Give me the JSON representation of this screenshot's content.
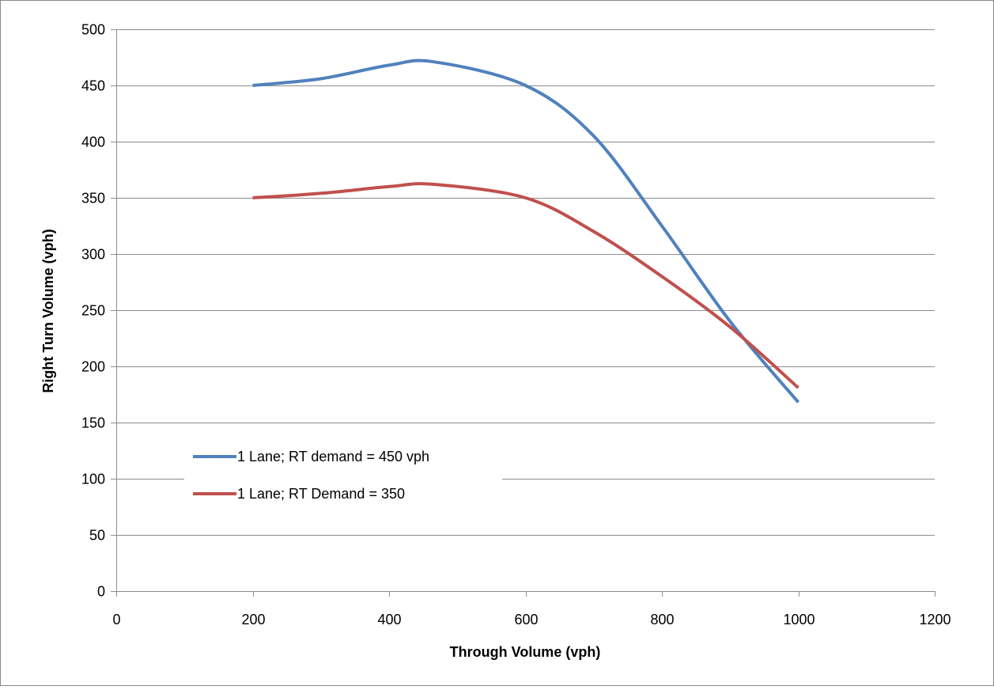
{
  "chart_data": {
    "type": "line",
    "title": "",
    "xlabel": "Through Volume (vph)",
    "ylabel": "Right Turn Volume  (vph)",
    "xlim": [
      0,
      1200
    ],
    "ylim": [
      0,
      500
    ],
    "x_ticks": [
      0,
      200,
      400,
      600,
      800,
      1000,
      1200
    ],
    "y_ticks": [
      0,
      50,
      100,
      150,
      200,
      250,
      300,
      350,
      400,
      450,
      500
    ],
    "grid": "horizontal",
    "legend_position": "inside-lower-left",
    "smooth": true,
    "series": [
      {
        "name": "1 Lane; RT demand = 450 vph",
        "color": "#4f81bd",
        "x": [
          200,
          300,
          400,
          466,
          600,
          700,
          800,
          900,
          1000
        ],
        "y": [
          450,
          456,
          468,
          471,
          450,
          405,
          325,
          240,
          168
        ]
      },
      {
        "name": "1 Lane; RT Demand = 350",
        "color": "#c0504d",
        "x": [
          200,
          300,
          400,
          466,
          600,
          700,
          800,
          900,
          1000
        ],
        "y": [
          350,
          354,
          360,
          362,
          350,
          320,
          280,
          235,
          181
        ]
      }
    ]
  }
}
